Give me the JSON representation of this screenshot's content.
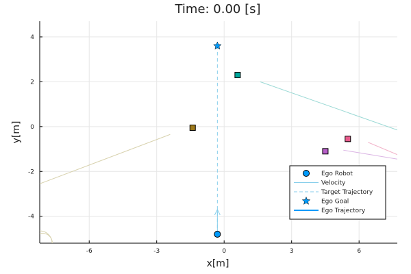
{
  "chart_data": {
    "type": "scatter",
    "title": "Time: 0.00 [s]",
    "xlabel": "x[m]",
    "ylabel": "y[m]",
    "xlim": [
      -8.2,
      7.7
    ],
    "ylim": [
      -5.2,
      4.7
    ],
    "xticks": [
      -6,
      -3,
      0,
      3,
      6
    ],
    "xtick_labels": [
      "-6",
      "-3",
      "0",
      "3",
      "6"
    ],
    "yticks": [
      -4,
      -2,
      0,
      2,
      4
    ],
    "ytick_labels": [
      "-4",
      "-2",
      "0",
      "2",
      "4"
    ],
    "grid": true,
    "legend_position": "bottom-right",
    "legend": [
      {
        "label": "Ego Robot",
        "kind": "circle",
        "color": "#009AFA"
      },
      {
        "label": "Velocity",
        "kind": "line",
        "color": "#87CEEB"
      },
      {
        "label": "Target Trajectory",
        "kind": "dash",
        "color": "#87CEEB"
      },
      {
        "label": "Ego Goal",
        "kind": "star",
        "color": "#009AFA"
      },
      {
        "label": "Ego Trajectory",
        "kind": "thick-line",
        "color": "#009AFA"
      }
    ],
    "ego_robot": {
      "x": -0.3,
      "y": -4.8,
      "color": "#009AFA"
    },
    "ego_goal": {
      "x": -0.3,
      "y": 3.6,
      "color": "#009AFA"
    },
    "target_trajectory": {
      "points": [
        [
          -0.3,
          -4.8
        ],
        [
          -0.3,
          3.6
        ]
      ],
      "color": "#87CEEB"
    },
    "velocity_arrow": {
      "from": [
        -0.3,
        -4.8
      ],
      "to": [
        -0.3,
        -3.7
      ],
      "color": "#87CEEB"
    },
    "obstacles": [
      {
        "x": 0.6,
        "y": 2.3,
        "color": "#00A89D"
      },
      {
        "x": -1.4,
        "y": -0.05,
        "color": "#9E7A1C"
      },
      {
        "x": 4.5,
        "y": -1.1,
        "color": "#B85FC9"
      },
      {
        "x": 5.5,
        "y": -0.55,
        "color": "#E85A8B"
      }
    ],
    "obstacle_lines": [
      {
        "points": [
          [
            1.6,
            2.0
          ],
          [
            7.7,
            -0.15
          ]
        ],
        "color": "#9AD9D5"
      },
      {
        "points": [
          [
            -2.4,
            -0.35
          ],
          [
            -8.2,
            -2.55
          ]
        ],
        "color": "#D8D2AE"
      },
      {
        "points": [
          [
            5.3,
            -1.05
          ],
          [
            7.7,
            -1.45
          ]
        ],
        "color": "#DCB7E5"
      },
      {
        "points": [
          [
            6.4,
            -0.7
          ],
          [
            7.7,
            -1.25
          ]
        ],
        "color": "#F2B4CA"
      }
    ],
    "corner_arc": {
      "cx": -8.2,
      "cy": -5.2,
      "r": 0.55,
      "color": "#D8D2AE"
    }
  }
}
